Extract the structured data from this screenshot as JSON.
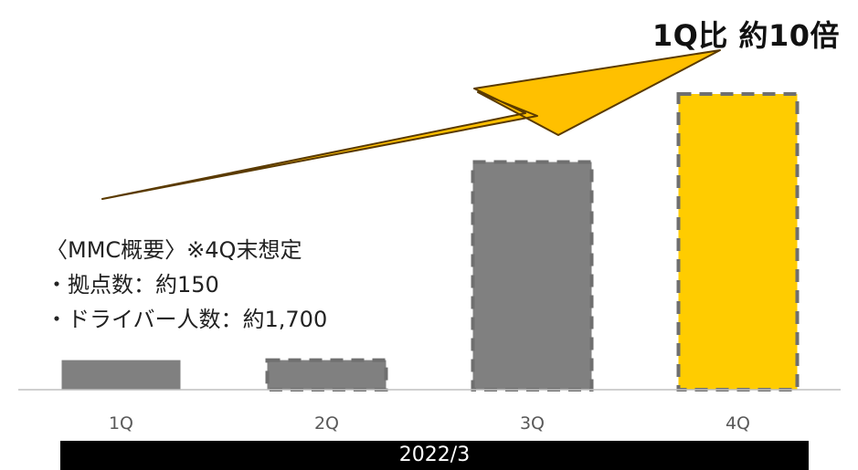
{
  "headline": "1Q比 約10倍",
  "note": {
    "title": "〈MMC概要〉※4Q末想定",
    "items": [
      "・拠点数：約150",
      "・ドライバー人数：約1,700"
    ]
  },
  "period_label": "2022/3",
  "colors": {
    "bar": "#808080",
    "highlight": "#FFCC00",
    "arrow": "#FFC000",
    "axis": "#bfbfbf",
    "tick_text": "#595959"
  },
  "chart_data": {
    "type": "bar",
    "categories": [
      "1Q",
      "2Q",
      "3Q",
      "4Q"
    ],
    "values": [
      1,
      1,
      7.7,
      10
    ],
    "highlight_index": 3,
    "dashed_indices": [
      1,
      2,
      3
    ],
    "ylim": [
      0,
      10
    ],
    "grid": false,
    "xlabel": "",
    "ylabel": ""
  }
}
